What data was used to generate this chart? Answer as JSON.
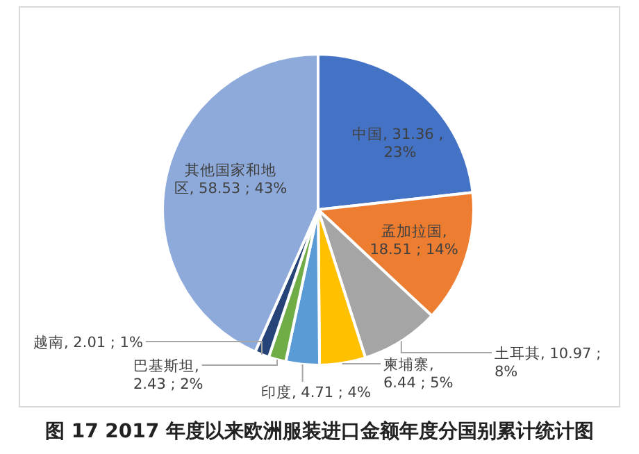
{
  "chart_data": {
    "type": "pie",
    "title": "图 17 2017 年度以来欧洲服装进口金额年度分国别累计统计图",
    "categories": [
      "中国",
      "孟加拉国",
      "土耳其",
      "柬埔寨",
      "印度",
      "巴基斯坦",
      "越南",
      "其他国家和地区"
    ],
    "values": [
      31.36,
      18.51,
      10.97,
      6.44,
      4.71,
      2.43,
      2.01,
      58.53
    ],
    "value_labels": [
      ", 31.36 , 23%",
      ", 18.51 ; 14%",
      ", 10.97 ; 8%",
      ", 6.44 ; 5%",
      ", 4.71 ; 4%",
      ", 2.43 ; 2%",
      ", 2.01 ; 1%",
      ", 58.53 ; 43%"
    ],
    "colors": [
      "#4472c4",
      "#ed7d31",
      "#a5a5a5",
      "#ffc000",
      "#5b9bd5",
      "#70ad47",
      "#264478",
      "#8eaadb"
    ]
  }
}
